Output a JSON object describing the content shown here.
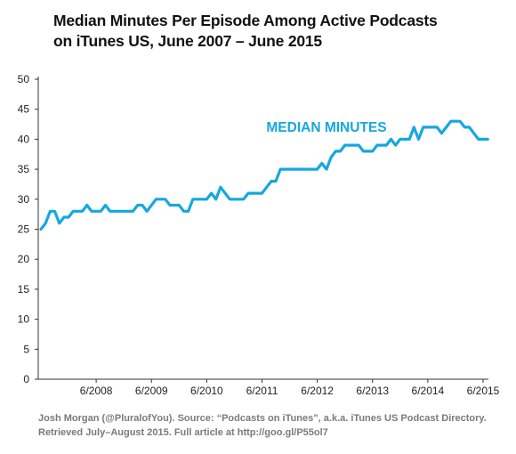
{
  "chart_data": {
    "type": "line",
    "title_lines": [
      "Median Minutes Per Episode Among Active Podcasts",
      "on iTunes US, June 2007 – June 2015"
    ],
    "xlabel": "",
    "ylabel": "",
    "ylim": [
      0,
      50
    ],
    "y_ticks": [
      0,
      5,
      10,
      15,
      20,
      25,
      30,
      35,
      40,
      45,
      50
    ],
    "xlim": [
      "2007-06",
      "2015-06"
    ],
    "x_tick_labels": [
      {
        "date": "2008-06",
        "label": "6/2008"
      },
      {
        "date": "2009-06",
        "label": "6/2009"
      },
      {
        "date": "2010-06",
        "label": "6/2010"
      },
      {
        "date": "2011-06",
        "label": "6/2011"
      },
      {
        "date": "2012-06",
        "label": "6/2012"
      },
      {
        "date": "2013-06",
        "label": "6/2013"
      },
      {
        "date": "2014-06",
        "label": "6/2014"
      },
      {
        "date": "2015-06",
        "label": "6/2015"
      }
    ],
    "series": [
      {
        "name": "MEDIAN MINUTES",
        "color": "#16a7e0",
        "points": [
          [
            "2007-06",
            25
          ],
          [
            "2007-07",
            26
          ],
          [
            "2007-08",
            28
          ],
          [
            "2007-09",
            28
          ],
          [
            "2007-10",
            26
          ],
          [
            "2007-11",
            27
          ],
          [
            "2007-12",
            27
          ],
          [
            "2008-01",
            28
          ],
          [
            "2008-02",
            28
          ],
          [
            "2008-03",
            28
          ],
          [
            "2008-04",
            29
          ],
          [
            "2008-05",
            28
          ],
          [
            "2008-06",
            28
          ],
          [
            "2008-07",
            28
          ],
          [
            "2008-08",
            29
          ],
          [
            "2008-09",
            28
          ],
          [
            "2008-10",
            28
          ],
          [
            "2008-11",
            28
          ],
          [
            "2008-12",
            28
          ],
          [
            "2009-01",
            28
          ],
          [
            "2009-02",
            28
          ],
          [
            "2009-03",
            29
          ],
          [
            "2009-04",
            29
          ],
          [
            "2009-05",
            28
          ],
          [
            "2009-06",
            29
          ],
          [
            "2009-07",
            30
          ],
          [
            "2009-08",
            30
          ],
          [
            "2009-09",
            30
          ],
          [
            "2009-10",
            29
          ],
          [
            "2009-11",
            29
          ],
          [
            "2009-12",
            29
          ],
          [
            "2010-01",
            28
          ],
          [
            "2010-02",
            28
          ],
          [
            "2010-03",
            30
          ],
          [
            "2010-04",
            30
          ],
          [
            "2010-05",
            30
          ],
          [
            "2010-06",
            30
          ],
          [
            "2010-07",
            31
          ],
          [
            "2010-08",
            30
          ],
          [
            "2010-09",
            32
          ],
          [
            "2010-10",
            31
          ],
          [
            "2010-11",
            30
          ],
          [
            "2010-12",
            30
          ],
          [
            "2011-01",
            30
          ],
          [
            "2011-02",
            30
          ],
          [
            "2011-03",
            31
          ],
          [
            "2011-04",
            31
          ],
          [
            "2011-05",
            31
          ],
          [
            "2011-06",
            31
          ],
          [
            "2011-07",
            32
          ],
          [
            "2011-08",
            33
          ],
          [
            "2011-09",
            33
          ],
          [
            "2011-10",
            35
          ],
          [
            "2011-11",
            35
          ],
          [
            "2011-12",
            35
          ],
          [
            "2012-01",
            35
          ],
          [
            "2012-02",
            35
          ],
          [
            "2012-03",
            35
          ],
          [
            "2012-04",
            35
          ],
          [
            "2012-05",
            35
          ],
          [
            "2012-06",
            35
          ],
          [
            "2012-07",
            36
          ],
          [
            "2012-08",
            35
          ],
          [
            "2012-09",
            37
          ],
          [
            "2012-10",
            38
          ],
          [
            "2012-11",
            38
          ],
          [
            "2012-12",
            39
          ],
          [
            "2013-01",
            39
          ],
          [
            "2013-02",
            39
          ],
          [
            "2013-03",
            39
          ],
          [
            "2013-04",
            38
          ],
          [
            "2013-05",
            38
          ],
          [
            "2013-06",
            38
          ],
          [
            "2013-07",
            39
          ],
          [
            "2013-08",
            39
          ],
          [
            "2013-09",
            39
          ],
          [
            "2013-10",
            40
          ],
          [
            "2013-11",
            39
          ],
          [
            "2013-12",
            40
          ],
          [
            "2014-01",
            40
          ],
          [
            "2014-02",
            40
          ],
          [
            "2014-03",
            42
          ],
          [
            "2014-04",
            40
          ],
          [
            "2014-05",
            42
          ],
          [
            "2014-06",
            42
          ],
          [
            "2014-07",
            42
          ],
          [
            "2014-08",
            42
          ],
          [
            "2014-09",
            41
          ],
          [
            "2014-10",
            42
          ],
          [
            "2014-11",
            43
          ],
          [
            "2014-12",
            43
          ],
          [
            "2015-01",
            43
          ],
          [
            "2015-02",
            42
          ],
          [
            "2015-03",
            42
          ],
          [
            "2015-04",
            41
          ],
          [
            "2015-05",
            40
          ],
          [
            "2015-06",
            40
          ],
          [
            "2015-07",
            40
          ]
        ]
      }
    ],
    "annotation": {
      "text": "MEDIAN MINUTES",
      "color": "#16a7e0"
    },
    "grid": false
  },
  "footer_lines": [
    "Josh Morgan (@PluralofYou). Source: “Podcasts on iTunes”, a.k.a. iTunes US Podcast Directory.",
    "Retrieved July–August 2015. Full article at http://goo.gl/P55ol7"
  ]
}
